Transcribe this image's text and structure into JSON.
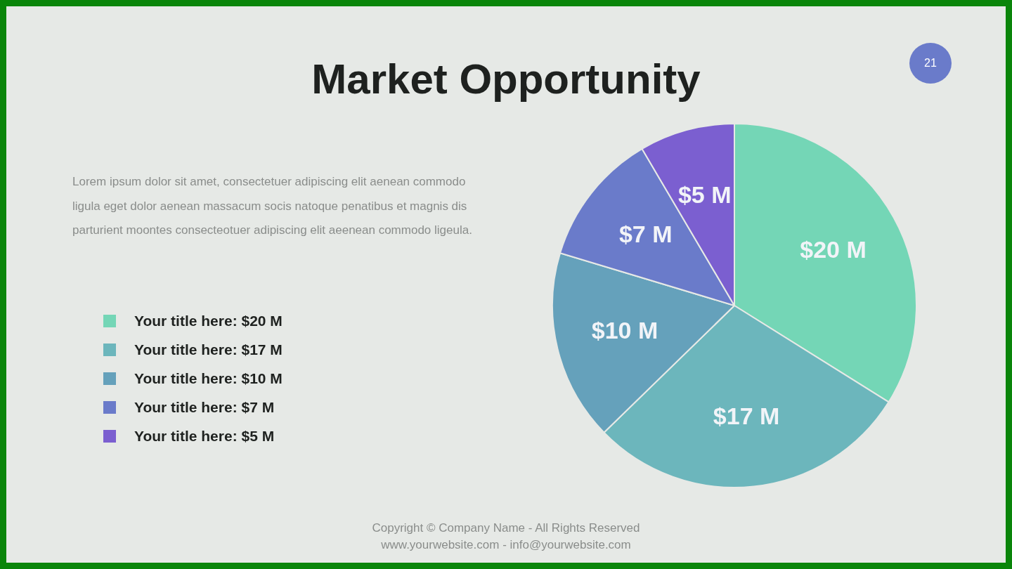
{
  "chart_data": {
    "type": "pie",
    "title": "Market Opportunity",
    "categories": [
      "Your title here: $20 M",
      "Your title here: $17 M",
      "Your title here: $10 M",
      "Your title here: $7 M",
      "Your title here: $5 M"
    ],
    "values": [
      20,
      17,
      10,
      7,
      5
    ],
    "colors": [
      "#74d6b6",
      "#6cb6bc",
      "#65a1bb",
      "#6a7bca",
      "#7b5fd0"
    ],
    "value_labels": [
      "$20 M",
      "$17 M",
      "$10 M",
      "$7 M",
      "$5 M"
    ],
    "legend": "left",
    "annotations": [
      "21",
      "Lorem ipsum dolor sit amet, consectetuer adipiscing elit aenean commodo ligula eget dolor aenean massacum socis natoque penatibus et magnis dis parturient moontes consecteotuer adipiscing elit aeenean commodo ligeula.",
      "Copyright © Company Name - All Rights Reserved",
      "www.yourwebsite.com - info@yourwebsite.com"
    ]
  }
}
